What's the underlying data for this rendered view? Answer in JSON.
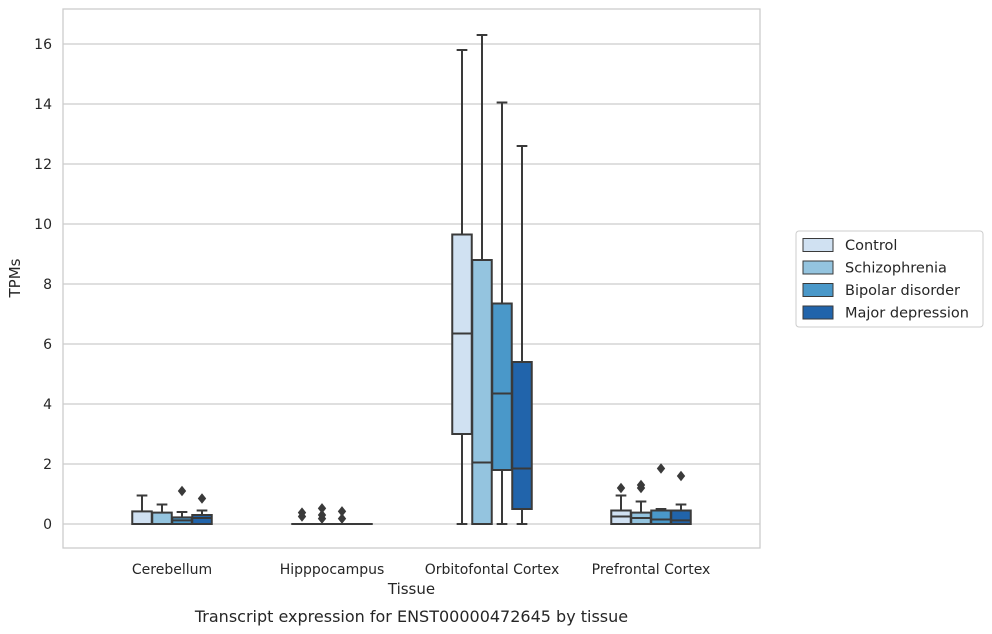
{
  "chart_data": {
    "type": "box",
    "caption": "Transcript expression for ENST00000472645 by tissue",
    "xlabel": "Tissue",
    "ylabel": "TPMs",
    "ylim": [
      -0.8,
      17.2
    ],
    "yticks": [
      0,
      2,
      4,
      6,
      8,
      10,
      12,
      14,
      16
    ],
    "ytick_labels": [
      "0",
      "2",
      "4",
      "6",
      "8",
      "10",
      "12",
      "14",
      "16"
    ],
    "grid": true,
    "legend_position": "right",
    "categories": [
      "Cerebellum",
      "Hipppocampus",
      "Orbitofontal Cortex",
      "Prefrontal Cortex"
    ],
    "series": [
      {
        "name": "Control",
        "color": "#d0e1f2",
        "boxes": [
          {
            "low": 0,
            "q1": 0,
            "median": 0,
            "q3": 0.42,
            "high": 0.95,
            "outliers": []
          },
          {
            "low": 0,
            "q1": 0,
            "median": 0,
            "q3": 0,
            "high": 0,
            "outliers": [
              0.25,
              0.38
            ]
          },
          {
            "low": 0,
            "q1": 3.0,
            "median": 6.35,
            "q3": 9.65,
            "high": 15.8,
            "outliers": []
          },
          {
            "low": 0,
            "q1": 0,
            "median": 0.25,
            "q3": 0.45,
            "high": 0.95,
            "outliers": [
              1.2
            ]
          }
        ]
      },
      {
        "name": "Schizophrenia",
        "color": "#94c4df",
        "boxes": [
          {
            "low": 0,
            "q1": 0,
            "median": 0,
            "q3": 0.38,
            "high": 0.65,
            "outliers": []
          },
          {
            "low": 0,
            "q1": 0,
            "median": 0,
            "q3": 0,
            "high": 0,
            "outliers": [
              0.18,
              0.3,
              0.52
            ]
          },
          {
            "low": 0,
            "q1": 0,
            "median": 2.05,
            "q3": 8.8,
            "high": 16.3,
            "outliers": []
          },
          {
            "low": 0,
            "q1": 0,
            "median": 0.2,
            "q3": 0.38,
            "high": 0.75,
            "outliers": [
              1.2,
              1.3
            ]
          }
        ]
      },
      {
        "name": "Bipolar disorder",
        "color": "#4a98c9",
        "boxes": [
          {
            "low": 0,
            "q1": 0,
            "median": 0.12,
            "q3": 0.22,
            "high": 0.4,
            "outliers": [
              1.1
            ]
          },
          {
            "low": 0,
            "q1": 0,
            "median": 0,
            "q3": 0,
            "high": 0,
            "outliers": [
              0.18,
              0.42
            ]
          },
          {
            "low": 0,
            "q1": 1.8,
            "median": 4.35,
            "q3": 7.35,
            "high": 14.05,
            "outliers": []
          },
          {
            "low": 0,
            "q1": 0,
            "median": 0.15,
            "q3": 0.45,
            "high": 0.5,
            "outliers": [
              1.85
            ]
          }
        ]
      },
      {
        "name": "Major depression",
        "color": "#2164ab",
        "boxes": [
          {
            "low": 0,
            "q1": 0,
            "median": 0.2,
            "q3": 0.3,
            "high": 0.45,
            "outliers": [
              0.85
            ]
          },
          {
            "low": 0,
            "q1": 0,
            "median": 0,
            "q3": 0,
            "high": 0,
            "outliers": []
          },
          {
            "low": 0,
            "q1": 0.5,
            "median": 1.85,
            "q3": 5.4,
            "high": 12.6,
            "outliers": []
          },
          {
            "low": 0,
            "q1": 0,
            "median": 0.12,
            "q3": 0.45,
            "high": 0.65,
            "outliers": [
              1.6
            ]
          }
        ]
      }
    ]
  }
}
